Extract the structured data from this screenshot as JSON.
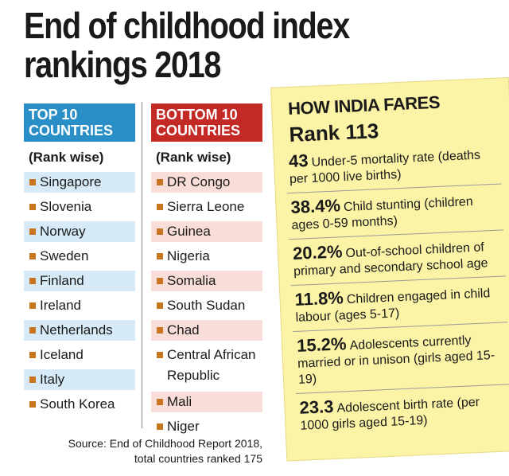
{
  "title": {
    "line1": "End of childhood index",
    "line2": "rankings 2018"
  },
  "top": {
    "heading_line1": "TOP 10",
    "heading_line2": "COUNTRIES",
    "subheading": "(Rank wise)",
    "items": [
      "Singapore",
      "Slovenia",
      "Norway",
      "Sweden",
      "Finland",
      "Ireland",
      "Netherlands",
      "Iceland",
      "Italy",
      "South Korea"
    ]
  },
  "bottom": {
    "heading_line1": "BOTTOM 10",
    "heading_line2": "COUNTRIES",
    "subheading": "(Rank wise)",
    "items": [
      "DR Congo",
      "Sierra Leone",
      "Guinea",
      "Nigeria",
      "Somalia",
      "South Sudan",
      "Chad",
      "Central African Republic",
      "Mali",
      "Niger"
    ]
  },
  "source": {
    "line1": "Source: End of Childhood Report 2018,",
    "line2": "total countries ranked 175"
  },
  "india": {
    "heading": "HOW INDIA FARES",
    "rank": "Rank 113",
    "stats": [
      {
        "value": "43",
        "text": "Under-5 mortality rate (deaths per 1000 live births)"
      },
      {
        "value": "38.4%",
        "text": "Child stunting (children ages 0-59 months)"
      },
      {
        "value": "20.2%",
        "text": "Out-of-school children of primary and secondary school age"
      },
      {
        "value": "11.8%",
        "text": "Children engaged in child labour (ages 5-17)"
      },
      {
        "value": "15.2%",
        "text": "Adolescents currently married or in unison (girls aged 15-19)"
      },
      {
        "value": "23.3",
        "text": "Adolescent birth rate (per 1000 girls aged 15-19)"
      }
    ]
  },
  "colors": {
    "top_header": "#2a8fc7",
    "bottom_header": "#c42a25",
    "panel": "#fbf3a6",
    "bullet": "#c8751f"
  }
}
